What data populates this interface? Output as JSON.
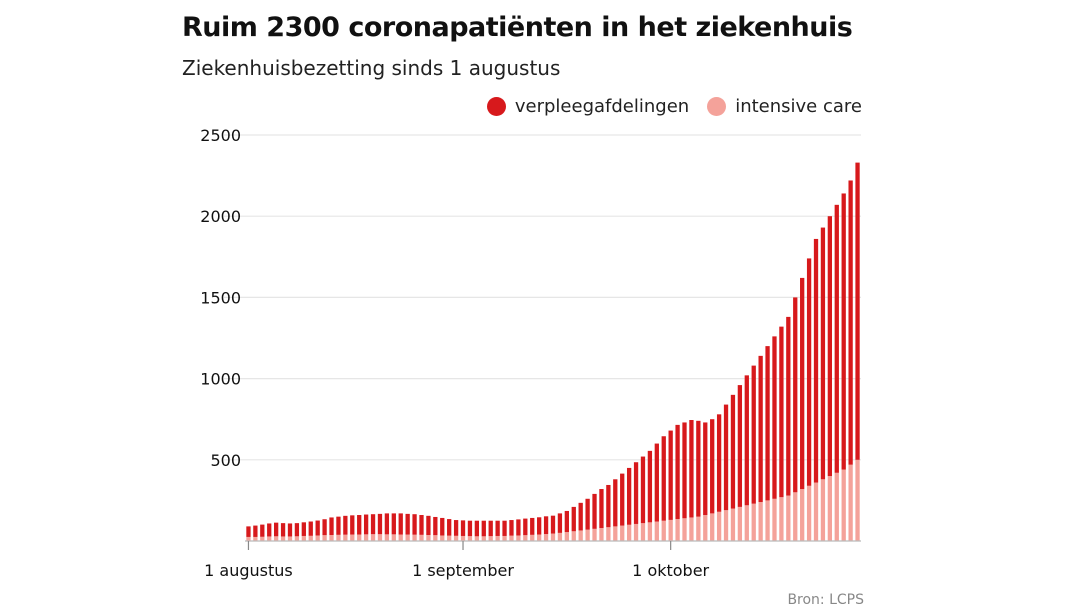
{
  "title": "Ruim 2300 coronapatiënten in het ziekenhuis",
  "subtitle": "Ziekenhuisbezetting sinds 1 augustus",
  "source": "Bron: LCPS",
  "legend": [
    {
      "label": "verpleegafdelingen",
      "color": "#d7191c"
    },
    {
      "label": "intensive care",
      "color": "#f4a29a"
    }
  ],
  "chart_data": {
    "type": "bar",
    "stacked": true,
    "title": "Ruim 2300 coronapatiënten in het ziekenhuis",
    "subtitle": "Ziekenhuisbezetting sinds 1 augustus",
    "xlabel": "",
    "ylabel": "",
    "ylim": [
      0,
      2500
    ],
    "yticks": [
      500,
      1000,
      1500,
      2000,
      2500
    ],
    "grid": true,
    "legend_position": "top-right",
    "x_tick_labels": [
      {
        "label": "1 augustus",
        "index": 0
      },
      {
        "label": "1 september",
        "index": 31
      },
      {
        "label": "1 oktober",
        "index": 61
      }
    ],
    "categories": [
      "2020-08-01",
      "2020-08-02",
      "2020-08-03",
      "2020-08-04",
      "2020-08-05",
      "2020-08-06",
      "2020-08-07",
      "2020-08-08",
      "2020-08-09",
      "2020-08-10",
      "2020-08-11",
      "2020-08-12",
      "2020-08-13",
      "2020-08-14",
      "2020-08-15",
      "2020-08-16",
      "2020-08-17",
      "2020-08-18",
      "2020-08-19",
      "2020-08-20",
      "2020-08-21",
      "2020-08-22",
      "2020-08-23",
      "2020-08-24",
      "2020-08-25",
      "2020-08-26",
      "2020-08-27",
      "2020-08-28",
      "2020-08-29",
      "2020-08-30",
      "2020-08-31",
      "2020-09-01",
      "2020-09-02",
      "2020-09-03",
      "2020-09-04",
      "2020-09-05",
      "2020-09-06",
      "2020-09-07",
      "2020-09-08",
      "2020-09-09",
      "2020-09-10",
      "2020-09-11",
      "2020-09-12",
      "2020-09-13",
      "2020-09-14",
      "2020-09-15",
      "2020-09-16",
      "2020-09-17",
      "2020-09-18",
      "2020-09-19",
      "2020-09-20",
      "2020-09-21",
      "2020-09-22",
      "2020-09-23",
      "2020-09-24",
      "2020-09-25",
      "2020-09-26",
      "2020-09-27",
      "2020-09-28",
      "2020-09-29",
      "2020-09-30",
      "2020-10-01",
      "2020-10-02",
      "2020-10-03",
      "2020-10-04",
      "2020-10-05",
      "2020-10-06",
      "2020-10-07",
      "2020-10-08",
      "2020-10-09",
      "2020-10-10",
      "2020-10-11",
      "2020-10-12",
      "2020-10-13",
      "2020-10-14",
      "2020-10-15",
      "2020-10-16",
      "2020-10-17",
      "2020-10-18",
      "2020-10-19",
      "2020-10-20",
      "2020-10-21",
      "2020-10-22",
      "2020-10-23",
      "2020-10-24",
      "2020-10-25",
      "2020-10-26",
      "2020-10-27",
      "2020-10-28"
    ],
    "series": [
      {
        "name": "intensive care",
        "color": "#f4a29a",
        "values": [
          25,
          25,
          26,
          28,
          29,
          28,
          28,
          29,
          31,
          32,
          34,
          36,
          37,
          38,
          39,
          40,
          40,
          41,
          42,
          42,
          41,
          41,
          40,
          40,
          39,
          38,
          37,
          36,
          34,
          33,
          32,
          31,
          30,
          29,
          29,
          30,
          31,
          31,
          33,
          34,
          36,
          38,
          40,
          43,
          46,
          50,
          55,
          60,
          65,
          70,
          75,
          80,
          85,
          90,
          95,
          100,
          105,
          110,
          115,
          120,
          125,
          130,
          135,
          140,
          145,
          150,
          160,
          170,
          180,
          190,
          200,
          210,
          220,
          230,
          240,
          250,
          260,
          270,
          280,
          300,
          320,
          340,
          360,
          380,
          400,
          420,
          440,
          470,
          500
        ]
      },
      {
        "name": "verpleegafdelingen",
        "color": "#d7191c",
        "values": [
          65,
          70,
          75,
          80,
          84,
          82,
          80,
          81,
          84,
          88,
          92,
          98,
          108,
          112,
          116,
          118,
          120,
          122,
          123,
          125,
          129,
          129,
          130,
          127,
          126,
          122,
          118,
          112,
          108,
          102,
          97,
          96,
          95,
          96,
          96,
          95,
          94,
          94,
          96,
          99,
          102,
          104,
          106,
          109,
          110,
          120,
          130,
          150,
          170,
          190,
          215,
          240,
          260,
          290,
          320,
          350,
          380,
          410,
          440,
          480,
          520,
          550,
          580,
          590,
          600,
          590,
          570,
          580,
          600,
          650,
          700,
          750,
          800,
          850,
          900,
          950,
          1000,
          1050,
          1100,
          1200,
          1300,
          1400,
          1500,
          1550,
          1600,
          1650,
          1700,
          1750,
          1830
        ]
      }
    ]
  }
}
